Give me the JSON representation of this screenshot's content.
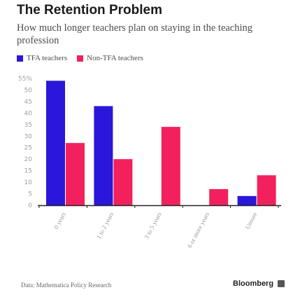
{
  "title": "The Retention Problem",
  "subtitle": "How much longer teachers plan on staying in the teaching profession",
  "legend": [
    {
      "label": "TFA teachers",
      "color": "#2a17d9"
    },
    {
      "label": "Non-TFA teachers",
      "color": "#f2215d"
    }
  ],
  "source": "Data: Mathematica Policy Research",
  "brand": "Bloomberg",
  "chart_data": {
    "type": "bar",
    "categories": [
      "0 years",
      "1 to 2 years",
      "3 to 5 years",
      "6 or more years",
      "Unsure"
    ],
    "series": [
      {
        "name": "TFA teachers",
        "color": "#2a17d9",
        "values": [
          54,
          43,
          0,
          0,
          4
        ]
      },
      {
        "name": "Non-TFA teachers",
        "color": "#f2215d",
        "values": [
          27,
          20,
          34,
          7,
          13
        ]
      }
    ],
    "ylim": [
      0,
      55
    ],
    "yticks": [
      0,
      5,
      10,
      15,
      20,
      25,
      30,
      35,
      40,
      45,
      50,
      55
    ],
    "top_tick_label": "55%",
    "grid": false,
    "legend_position": "top-left"
  }
}
